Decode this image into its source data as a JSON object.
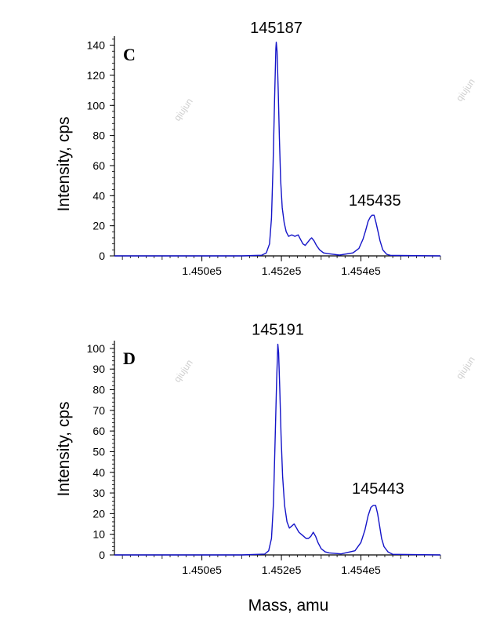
{
  "chart_data": [
    {
      "type": "line",
      "panel_label": "C",
      "ylabel": "Intensity, cps",
      "xlabel": "",
      "xlim": [
        144780,
        145600
      ],
      "ylim": [
        0,
        145
      ],
      "x_ticks": [
        {
          "value": 145000,
          "label": "1.450e5"
        },
        {
          "value": 145200,
          "label": "1.452e5"
        },
        {
          "value": 145400,
          "label": "1.454e5"
        }
      ],
      "y_ticks": [
        0,
        20,
        40,
        60,
        80,
        100,
        120,
        140
      ],
      "peak_labels": [
        {
          "x": 145187,
          "y": 142,
          "text": "145187"
        },
        {
          "x": 145435,
          "y": 27,
          "text": "145435"
        }
      ],
      "series": [
        {
          "color": "#1414c8",
          "points": [
            [
              144780,
              0
            ],
            [
              145100,
              0
            ],
            [
              145150,
              0.4
            ],
            [
              145162,
              2
            ],
            [
              145170,
              8
            ],
            [
              145175,
              25
            ],
            [
              145179,
              60
            ],
            [
              145183,
              105
            ],
            [
              145186,
              138
            ],
            [
              145187,
              142
            ],
            [
              145189,
              136
            ],
            [
              145192,
              110
            ],
            [
              145195,
              78
            ],
            [
              145198,
              50
            ],
            [
              145202,
              32
            ],
            [
              145207,
              22
            ],
            [
              145212,
              16
            ],
            [
              145218,
              13
            ],
            [
              145226,
              14
            ],
            [
              145234,
              13
            ],
            [
              145242,
              14
            ],
            [
              145248,
              11
            ],
            [
              145254,
              8
            ],
            [
              145260,
              7
            ],
            [
              145266,
              9
            ],
            [
              145272,
              11
            ],
            [
              145276,
              12
            ],
            [
              145282,
              10
            ],
            [
              145288,
              7
            ],
            [
              145296,
              4
            ],
            [
              145306,
              2
            ],
            [
              145316,
              1.5
            ],
            [
              145346,
              0.5
            ],
            [
              145380,
              2
            ],
            [
              145395,
              5
            ],
            [
              145405,
              11
            ],
            [
              145412,
              17
            ],
            [
              145418,
              23
            ],
            [
              145424,
              26
            ],
            [
              145428,
              27
            ],
            [
              145433,
              27
            ],
            [
              145438,
              22
            ],
            [
              145443,
              16
            ],
            [
              145448,
              10
            ],
            [
              145455,
              4
            ],
            [
              145465,
              1
            ],
            [
              145475,
              0.3
            ],
            [
              145600,
              0
            ]
          ]
        }
      ]
    },
    {
      "type": "line",
      "panel_label": "D",
      "ylabel": "Intensity, cps",
      "xlabel": "Mass, amu",
      "xlim": [
        144780,
        145600
      ],
      "ylim": [
        0,
        103
      ],
      "x_ticks": [
        {
          "value": 145000,
          "label": "1.450e5"
        },
        {
          "value": 145200,
          "label": "1.452e5"
        },
        {
          "value": 145400,
          "label": "1.454e5"
        }
      ],
      "y_ticks": [
        0,
        10,
        20,
        30,
        40,
        50,
        60,
        70,
        80,
        90,
        100
      ],
      "peak_labels": [
        {
          "x": 145191,
          "y": 102,
          "text": "145191"
        },
        {
          "x": 145443,
          "y": 25,
          "text": "145443"
        }
      ],
      "series": [
        {
          "color": "#1414c8",
          "points": [
            [
              144780,
              0
            ],
            [
              145100,
              0
            ],
            [
              145158,
              0.4
            ],
            [
              145168,
              2
            ],
            [
              145175,
              8
            ],
            [
              145180,
              25
            ],
            [
              145184,
              55
            ],
            [
              145188,
              85
            ],
            [
              145191,
              102
            ],
            [
              145193,
              98
            ],
            [
              145196,
              80
            ],
            [
              145199,
              58
            ],
            [
              145203,
              38
            ],
            [
              145208,
              24
            ],
            [
              145214,
              16
            ],
            [
              145220,
              13
            ],
            [
              145226,
              14
            ],
            [
              145232,
              15
            ],
            [
              145238,
              13
            ],
            [
              145244,
              11
            ],
            [
              145250,
              10
            ],
            [
              145256,
              9
            ],
            [
              145262,
              8
            ],
            [
              145268,
              8
            ],
            [
              145274,
              9
            ],
            [
              145280,
              11
            ],
            [
              145286,
              9
            ],
            [
              145292,
              6
            ],
            [
              145300,
              3
            ],
            [
              145310,
              1.5
            ],
            [
              145320,
              1
            ],
            [
              145350,
              0.5
            ],
            [
              145385,
              2
            ],
            [
              145400,
              6
            ],
            [
              145410,
              12
            ],
            [
              145418,
              19
            ],
            [
              145425,
              23
            ],
            [
              145431,
              24
            ],
            [
              145437,
              24
            ],
            [
              145442,
              20
            ],
            [
              145447,
              14
            ],
            [
              145452,
              8
            ],
            [
              145458,
              4
            ],
            [
              145468,
              1.5
            ],
            [
              145480,
              0.3
            ],
            [
              145600,
              0
            ]
          ]
        }
      ]
    }
  ],
  "watermarks": [
    "qiujun",
    "qiujun",
    "qiujun",
    "qiujun"
  ]
}
